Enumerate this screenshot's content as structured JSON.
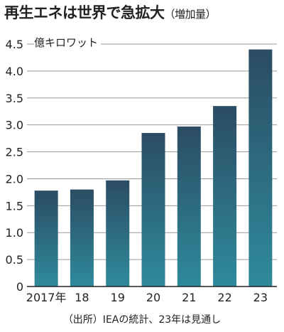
{
  "title": "再生エネは世界で急拡大",
  "subtitle": "（増加量）",
  "unit_label": "億キロワット",
  "source_note": "（出所）IEAの統計、23年は見通し",
  "colors": {
    "bar_top": "#2b4c63",
    "bar_bottom": "#2f8a9c",
    "grid": "#9a9a9a",
    "axis": "#222222"
  },
  "chart_data": {
    "type": "bar",
    "categories": [
      "2017年",
      "18",
      "19",
      "20",
      "21",
      "22",
      "23"
    ],
    "values": [
      1.78,
      1.8,
      1.97,
      2.85,
      2.97,
      3.35,
      4.4
    ],
    "ylim": [
      0,
      4.5
    ],
    "yticks": [
      "0",
      "0.5",
      "1.0",
      "1.5",
      "2.0",
      "2.5",
      "3.0",
      "3.5",
      "4.0",
      "4.5"
    ],
    "tick_values": [
      0,
      0.5,
      1.0,
      1.5,
      2.0,
      2.5,
      3.0,
      3.5,
      4.0,
      4.5
    ],
    "grid": true,
    "xlabel": "",
    "ylabel": "億キロワット"
  }
}
